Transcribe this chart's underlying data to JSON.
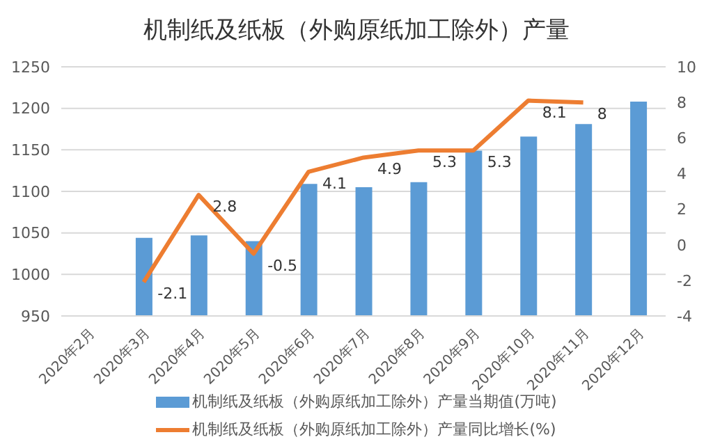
{
  "chart_data": {
    "type": "bar",
    "title": "机制纸及纸板（外购原纸加工除外）产量",
    "categories": [
      "2020年2月",
      "2020年3月",
      "2020年4月",
      "2020年5月",
      "2020年6月",
      "2020年7月",
      "2020年8月",
      "2020年9月",
      "2020年10月",
      "2020年11月",
      "2020年12月"
    ],
    "series": [
      {
        "name": "机制纸及纸板（外购原纸加工除外）产量当期值(万吨)",
        "color": "#5b9bd5",
        "values": [
          null,
          1044,
          1047,
          1040,
          1109,
          1105,
          1111,
          1149,
          1166,
          1181,
          1208
        ]
      },
      {
        "name": "机制纸及纸板（外购原纸加工除外）产量同比增长(%)",
        "type": "line",
        "axis": "y2",
        "color": "#ed7d31",
        "values": [
          null,
          -2.1,
          2.8,
          -0.5,
          4.1,
          4.9,
          5.3,
          5.3,
          8.1,
          8,
          null
        ],
        "value_labels": [
          null,
          "-2.1",
          "2.8",
          "-0.5",
          "4.1",
          "4.9",
          "5.3",
          "5.3",
          "8.1",
          "8",
          null
        ]
      }
    ],
    "ylim": [
      950,
      1250
    ],
    "yticks": [
      950,
      1000,
      1050,
      1100,
      1150,
      1200,
      1250
    ],
    "y2lim": [
      -4,
      10
    ],
    "y2ticks": [
      -4,
      -2,
      0,
      2,
      4,
      6,
      8,
      10
    ],
    "grid": "y",
    "legend": "bottom"
  }
}
